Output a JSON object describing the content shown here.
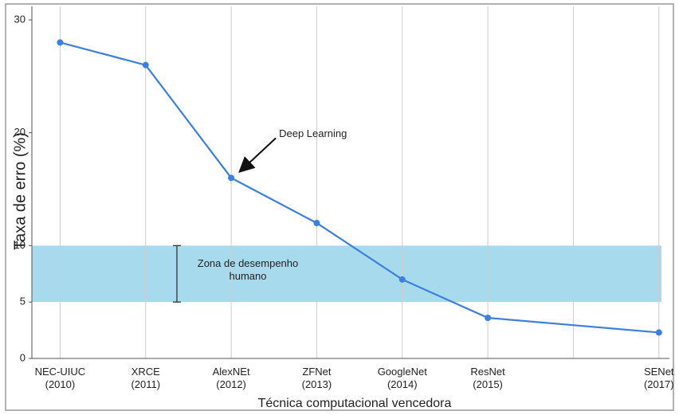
{
  "chart_data": {
    "type": "line",
    "y_label": "Taxa de erro (%)",
    "x_label": "Técnica computacional vencedora",
    "x": [
      0,
      1,
      2,
      3,
      4,
      5,
      7
    ],
    "series": [
      {
        "name": null,
        "color": "#3b7fe0",
        "values": [
          28,
          26,
          16,
          12,
          7,
          3.6,
          2.3
        ]
      }
    ],
    "xlim": [
      -0.33,
      7.03
    ],
    "xticks": [
      {
        "value": 0,
        "label": "NEC-UIUC\n(2010)"
      },
      {
        "value": 1,
        "label": "XRCE\n(2011)"
      },
      {
        "value": 2,
        "label": "AlexNEt\n(2012)"
      },
      {
        "value": 3,
        "label": "ZFNet\n(2013)"
      },
      {
        "value": 4,
        "label": "GoogleNet\n(2014)"
      },
      {
        "value": 5,
        "label": "ResNet\n(2015)"
      },
      {
        "value": 6,
        "label": null
      },
      {
        "value": 7,
        "label": "SENet\n(2017)"
      }
    ],
    "ylim": [
      0,
      31.2
    ],
    "yticks": [
      0,
      5,
      10,
      20,
      30
    ],
    "grid": "x",
    "band": {
      "from": 5,
      "to": 10,
      "label": "Zona de desempenho humano",
      "color": "#a8daee"
    },
    "annotation": {
      "text": "Deep Learning",
      "x": 2,
      "y": 16
    }
  }
}
